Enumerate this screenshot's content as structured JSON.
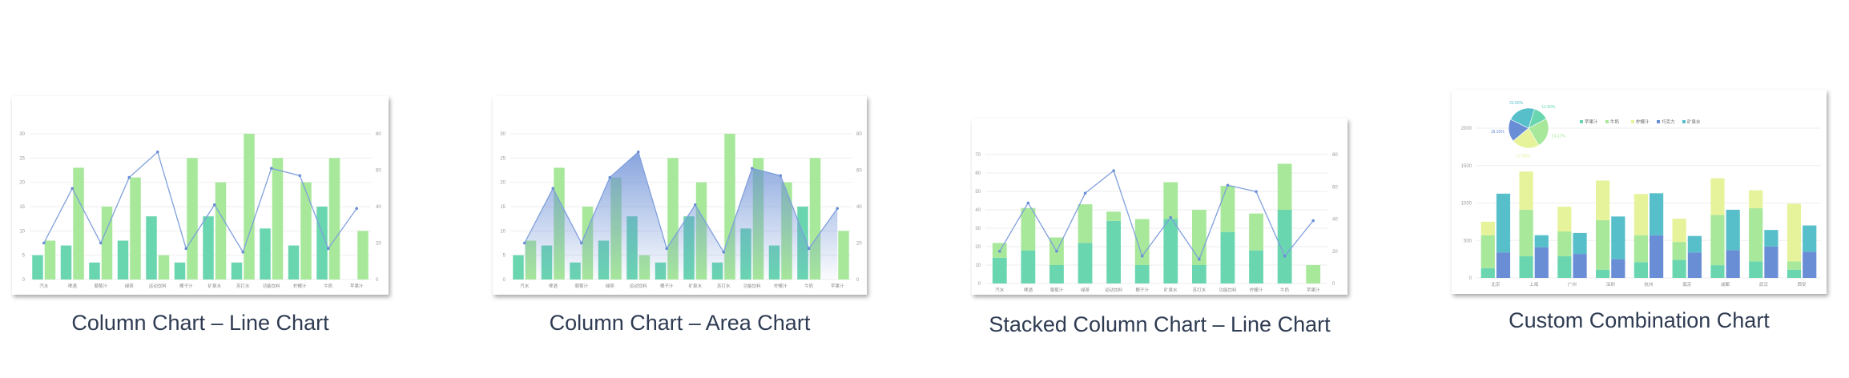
{
  "colors": {
    "teal": "#6ad6b0",
    "green": "#a8e89a",
    "yellow": "#e6f39a",
    "blue": "#6a8ed6",
    "cyan": "#56bfca",
    "line": "#7f9fdc",
    "caption": "#2e3b52"
  },
  "cards": [
    {
      "title": "Column Chart – Line Chart",
      "type": "column-line",
      "categories": [
        "汽水",
        "啤酒",
        "葡萄汁",
        "绿茶",
        "运动饮料",
        "椰子汁",
        "矿泉水",
        "苏打水",
        "功能饮料",
        "柠檬汁",
        "牛奶",
        "苹果汁"
      ],
      "left_ticks": [
        "0",
        "5",
        "10",
        "15",
        "20",
        "25",
        "30"
      ],
      "right_ticks": [
        "0",
        "20",
        "40",
        "60",
        "80"
      ],
      "left_max": 30,
      "right_max": 80,
      "bars": [
        [
          5,
          7,
          3.5,
          8,
          13,
          3.5,
          13,
          3.5,
          10.5,
          7,
          15,
          0
        ],
        [
          8,
          23,
          15,
          21,
          5,
          25,
          20,
          30,
          25,
          20,
          25,
          10
        ]
      ],
      "line": [
        20,
        50,
        20,
        56,
        70,
        17,
        41,
        15,
        61,
        57,
        17,
        39
      ]
    },
    {
      "title": "Column Chart – Area Chart",
      "type": "column-area",
      "categories": [
        "汽水",
        "啤酒",
        "葡萄汁",
        "绿茶",
        "运动饮料",
        "椰子汁",
        "矿泉水",
        "苏打水",
        "功能饮料",
        "柠檬汁",
        "牛奶",
        "苹果汁"
      ],
      "left_ticks": [
        "0",
        "5",
        "10",
        "15",
        "20",
        "25",
        "30"
      ],
      "right_ticks": [
        "0",
        "20",
        "40",
        "60",
        "80"
      ],
      "left_max": 30,
      "right_max": 80,
      "bars": [
        [
          5,
          7,
          3.5,
          8,
          13,
          3.5,
          13,
          3.5,
          10.5,
          7,
          15,
          0
        ],
        [
          8,
          23,
          15,
          21,
          5,
          25,
          20,
          30,
          25,
          20,
          25,
          10
        ]
      ],
      "line": [
        20,
        50,
        20,
        56,
        70,
        17,
        41,
        15,
        61,
        57,
        17,
        39
      ]
    },
    {
      "title": "Stacked Column Chart – Line Chart",
      "type": "stacked-line",
      "categories": [
        "汽水",
        "啤酒",
        "葡萄汁",
        "绿茶",
        "运动饮料",
        "椰子汁",
        "矿泉水",
        "苏打水",
        "功能饮料",
        "柠檬汁",
        "牛奶",
        "苹果汁"
      ],
      "left_ticks": [
        "0",
        "10",
        "20",
        "30",
        "40",
        "50",
        "60",
        "70"
      ],
      "right_ticks": [
        "0",
        "20",
        "40",
        "60",
        "80"
      ],
      "left_max": 70,
      "right_max": 80,
      "bars": [
        [
          14,
          18,
          10,
          22,
          34,
          10,
          35,
          10,
          28,
          18,
          40,
          0
        ],
        [
          8,
          23,
          15,
          21,
          5,
          25,
          20,
          30,
          25,
          20,
          25,
          10
        ]
      ],
      "line": [
        20,
        50,
        20,
        56,
        70,
        17,
        41,
        15,
        61,
        57,
        17,
        39
      ]
    },
    {
      "title": "Custom Combination Chart",
      "type": "custom",
      "categories": [
        "北京",
        "上海",
        "广州",
        "深圳",
        "杭州",
        "南京",
        "成都",
        "武汉",
        "西安"
      ],
      "left_ticks": [
        "0",
        "500",
        "1000",
        "1500",
        "2000"
      ],
      "left_max": 2000,
      "stack_left": [
        [
          130,
          290,
          290,
          110,
          210,
          240,
          170,
          220,
          110
        ],
        [
          440,
          620,
          330,
          660,
          360,
          240,
          670,
          710,
          110
        ],
        [
          180,
          510,
          330,
          530,
          550,
          310,
          490,
          240,
          770
        ]
      ],
      "stack_right": [
        [
          340,
          410,
          320,
          250,
          570,
          340,
          370,
          420,
          350
        ],
        [
          785,
          160,
          280,
          570,
          560,
          220,
          540,
          220,
          350
        ]
      ],
      "legend": [
        "苹果汁",
        "牛奶",
        "柠檬汁",
        "巧克力",
        "矿泉水"
      ],
      "pie": [
        12.5,
        24.17,
        22.5,
        18.33,
        22.5
      ]
    }
  ]
}
